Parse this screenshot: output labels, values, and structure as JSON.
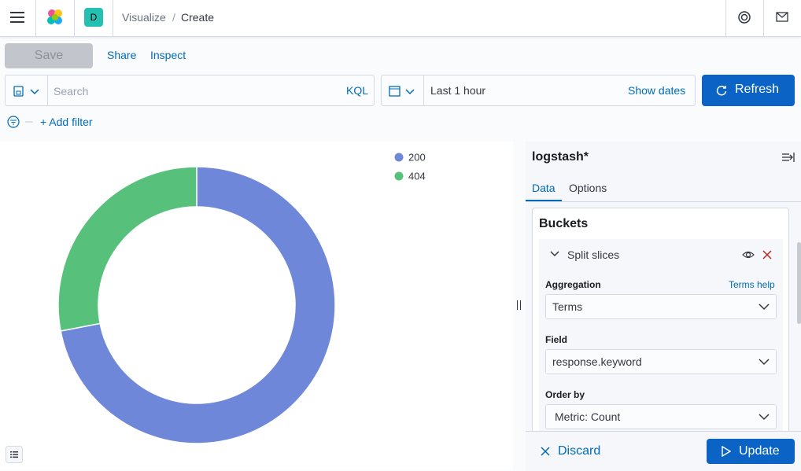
{
  "header": {
    "space_badge": "D",
    "breadcrumbs": [
      "Visualize",
      "Create"
    ]
  },
  "toolbar": {
    "save": "Save",
    "share": "Share",
    "inspect": "Inspect"
  },
  "query_bar": {
    "placeholder": "Search",
    "language": "KQL",
    "time_range": "Last 1 hour",
    "show_dates": "Show dates",
    "refresh": "Refresh",
    "add_filter": "+ Add filter"
  },
  "chart_data": {
    "type": "pie",
    "donut": true,
    "categories": [
      "200",
      "404"
    ],
    "values": [
      72,
      28
    ],
    "colors": [
      "#6f87d8",
      "#57c17b"
    ],
    "legend": "top-right"
  },
  "editor": {
    "index_pattern": "logstash*",
    "tabs": [
      "Data",
      "Options"
    ],
    "section": "Buckets",
    "bucket": "Split slices",
    "fields": [
      {
        "label": "Aggregation",
        "value": "Terms",
        "help": "Terms help"
      },
      {
        "label": "Field",
        "value": "response.keyword"
      },
      {
        "label": "Order by",
        "value": "Metric: Count"
      }
    ],
    "discard": "Discard",
    "update": "Update"
  }
}
